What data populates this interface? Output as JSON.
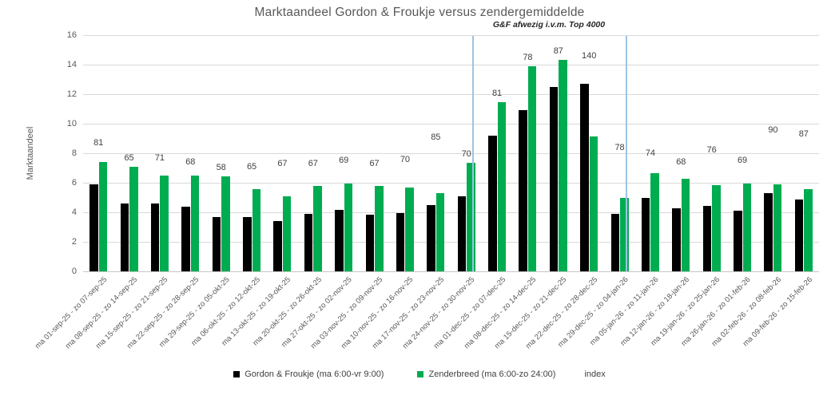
{
  "chart_data": {
    "type": "bar",
    "title": "Marktaandeel Gordon & Froukje versus zendergemiddelde",
    "ylabel": "Marktaandeel",
    "xlabel": "",
    "ylim": [
      0,
      16
    ],
    "ytick_step": 2,
    "grid": true,
    "legend_position": "bottom",
    "categories": [
      "ma 01-sep-25 - zo 07-sep-25",
      "ma 08-sep-25 - zo 14-sep-25",
      "ma 15-sep-25 - zo 21-sep-25",
      "ma 22-sep-25 - zo 28-sep-25",
      "ma 29-sep-25 - zo 05-okt-25",
      "ma 06-okt-25 - zo 12-okt-25",
      "ma 13-okt-25 - zo 19-okt-25",
      "ma 20-okt-25 - zo 26-okt-25",
      "ma 27-okt-25 - zo 02-nov-25",
      "ma 03-nov-25 - zo 09-nov-25",
      "ma 10-nov-25 - zo 16-nov-25",
      "ma 17-nov-25 - zo 23-nov-25",
      "ma 24-nov-25 - zo 30-nov-25",
      "ma 01-dec-25 - zo 07-dec-25",
      "ma 08-dec-25 - zo 14-dec-25",
      "ma 15-dec-25 - zo 21-dec-25",
      "ma 22-dec-25 - zo 28-dec-25",
      "ma 29-dec-25 - zo 04-jan-26",
      "ma 05-jan-26 - zo 11-jan-26",
      "ma 12-jan-26 - zo 18-jan-26",
      "ma 19-jan-26 - zo 25-jan-26",
      "ma 26-jan-26 - zo 01-feb-26",
      "ma 02-feb-26 - zo 08-feb-26",
      "ma 09-feb-26 - zo 15-feb-26"
    ],
    "series": [
      {
        "name": "Gordon & Froukje (ma 6:00-vr 9:00)",
        "color": "#000000",
        "values": [
          5.9,
          4.6,
          4.6,
          4.4,
          3.7,
          3.65,
          3.4,
          3.9,
          4.15,
          3.85,
          3.95,
          4.5,
          5.1,
          9.2,
          10.9,
          12.5,
          12.7,
          3.9,
          4.95,
          4.25,
          4.45,
          4.1,
          5.3,
          4.85
        ]
      },
      {
        "name": "Zenderbreed (ma 6:00-zo 24:00)",
        "color": "#00AC50",
        "values": [
          7.4,
          7.1,
          6.5,
          6.5,
          6.45,
          5.55,
          5.1,
          5.8,
          5.95,
          5.8,
          5.7,
          5.3,
          7.35,
          11.45,
          13.9,
          14.3,
          9.15,
          5.0,
          6.65,
          6.25,
          5.85,
          5.95,
          5.9,
          5.55
        ]
      },
      {
        "name": "index",
        "type": "data-labels",
        "values": [
          81,
          65,
          71,
          68,
          58,
          65,
          67,
          67,
          69,
          67,
          70,
          85,
          70,
          81,
          78,
          87,
          140,
          78,
          74,
          68,
          76,
          69,
          90,
          87
        ]
      }
    ],
    "annotation": {
      "text": "G&F afwezig i.v.m. Top 4000",
      "divider_color": "#9DC3E6",
      "vline_category_indices": [
        12,
        17
      ]
    }
  },
  "colors": {
    "background": "#FFFFFF",
    "title_text": "#595959",
    "axis_text": "#595959",
    "index_label_text": "#404040",
    "gridline": "#D9D9D9",
    "divider_line": "#9DC3E6",
    "series_gordon_froukje": "#000000",
    "series_zenderbreed": "#00AC50"
  }
}
